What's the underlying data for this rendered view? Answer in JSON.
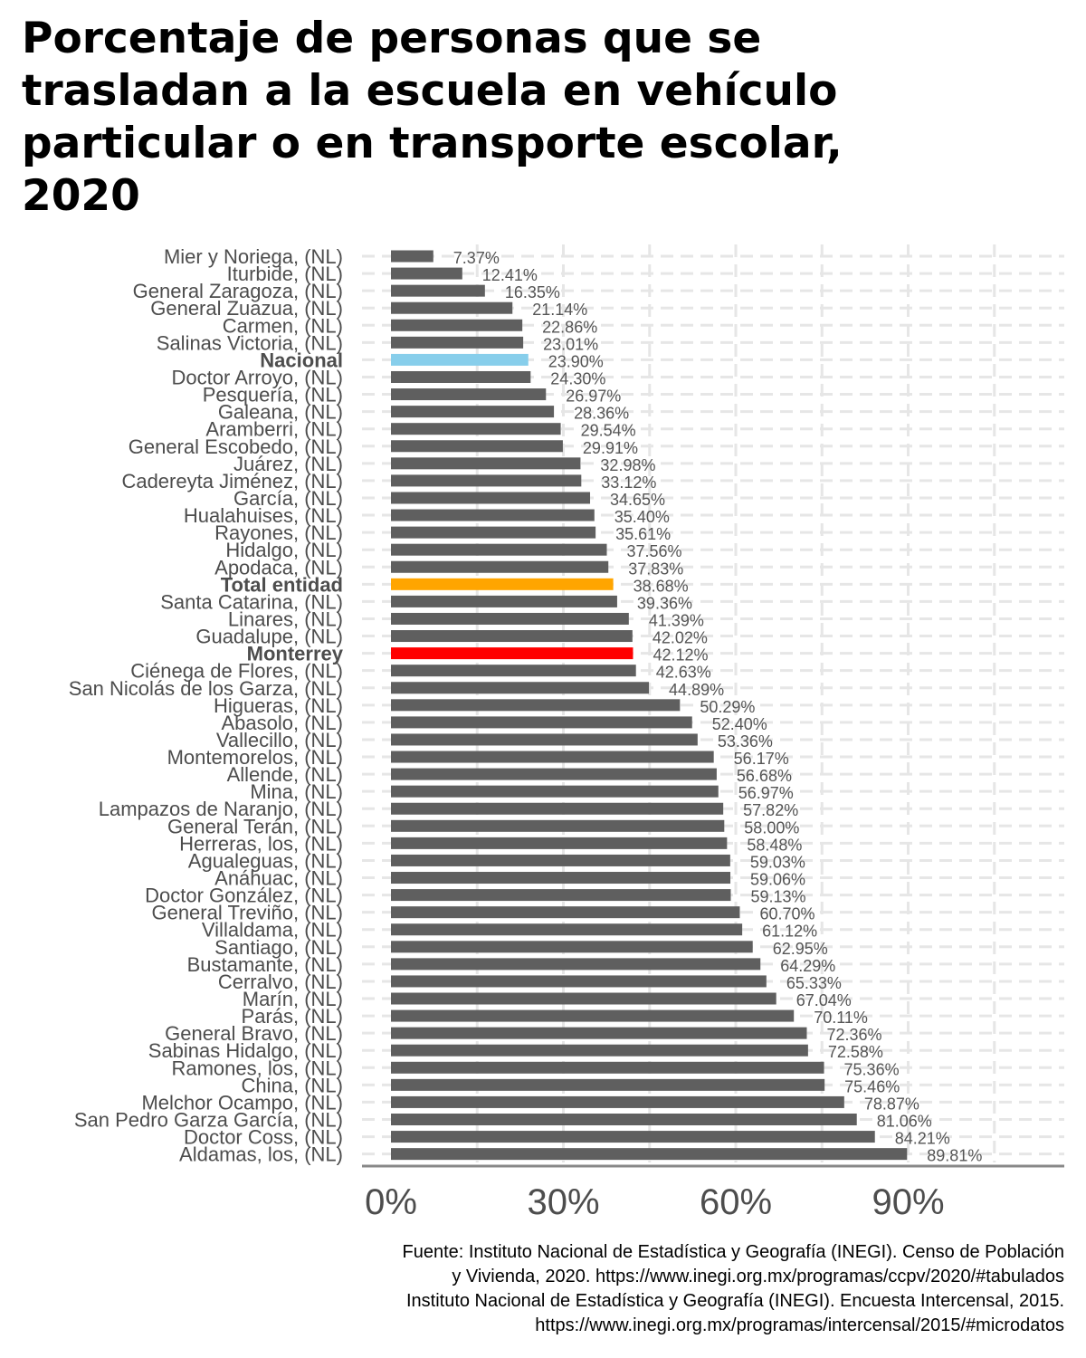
{
  "title": "Porcentaje de personas que se\ntrasladan a la escuela en vehículo\nparticular o en transporte escolar,\n2020",
  "source_lines": [
    "Fuente: Instituto Nacional de Estadística y Geografía (INEGI). Censo de Población",
    "y Vivienda, 2020. https://www.inegi.org.mx/programas/ccpv/2020/#tabulados",
    "Instituto Nacional de Estadística y Geografía (INEGI). Encuesta Intercensal, 2015.",
    "https://www.inegi.org.mx/programas/intercensal/2015/#microdatos"
  ],
  "colors": {
    "default_bar": "#5f5f5f",
    "Nacional": "#87ceeb",
    "Total entidad": "#ffa500",
    "Monterrey": "#ff0000"
  },
  "chart_data": {
    "type": "bar",
    "orientation": "horizontal",
    "xlim": [
      0,
      1.14
    ],
    "x_ticks": [
      0,
      0.3,
      0.6,
      0.9
    ],
    "x_tick_labels": [
      "0%",
      "30%",
      "60%",
      "90%"
    ],
    "grid": true,
    "categories": [
      "Mier y Noriega, (NL)",
      "Iturbide, (NL)",
      "General Zaragoza, (NL)",
      "General Zuazua, (NL)",
      "Carmen, (NL)",
      "Salinas Victoria, (NL)",
      "Nacional",
      "Doctor Arroyo, (NL)",
      "Pesquería, (NL)",
      "Galeana, (NL)",
      "Aramberri, (NL)",
      "General Escobedo, (NL)",
      "Juárez, (NL)",
      "Cadereyta Jiménez, (NL)",
      "García, (NL)",
      "Hualahuises, (NL)",
      "Rayones, (NL)",
      "Hidalgo, (NL)",
      "Apodaca, (NL)",
      "Total entidad",
      "Santa Catarina, (NL)",
      "Linares, (NL)",
      "Guadalupe, (NL)",
      "Monterrey",
      "Ciénega de Flores, (NL)",
      "San Nicolás de los Garza, (NL)",
      "Higueras, (NL)",
      "Abasolo, (NL)",
      "Vallecillo, (NL)",
      "Montemorelos, (NL)",
      "Allende, (NL)",
      "Mina, (NL)",
      "Lampazos de Naranjo, (NL)",
      "General Terán, (NL)",
      "Herreras, los, (NL)",
      "Agualeguas, (NL)",
      "Anáhuac, (NL)",
      "Doctor González, (NL)",
      "General Treviño, (NL)",
      "Villaldama, (NL)",
      "Santiago, (NL)",
      "Bustamante, (NL)",
      "Cerralvo, (NL)",
      "Marín, (NL)",
      "Parás, (NL)",
      "General Bravo, (NL)",
      "Sabinas Hidalgo, (NL)",
      "Ramones, los, (NL)",
      "China, (NL)",
      "Melchor Ocampo, (NL)",
      "San Pedro Garza García, (NL)",
      "Doctor Coss, (NL)",
      "Aldamas, los, (NL)"
    ],
    "values": [
      0.0737,
      0.1241,
      0.1635,
      0.2114,
      0.2286,
      0.2301,
      0.239,
      0.243,
      0.2697,
      0.2836,
      0.2954,
      0.2991,
      0.3298,
      0.3312,
      0.3465,
      0.354,
      0.3561,
      0.3756,
      0.3783,
      0.3868,
      0.3936,
      0.4139,
      0.4202,
      0.4212,
      0.4263,
      0.4489,
      0.5029,
      0.524,
      0.5336,
      0.5617,
      0.5668,
      0.5697,
      0.5782,
      0.58,
      0.5848,
      0.5903,
      0.5906,
      0.5913,
      0.607,
      0.6112,
      0.6295,
      0.6429,
      0.6533,
      0.6704,
      0.7011,
      0.7236,
      0.7258,
      0.7536,
      0.7546,
      0.7887,
      0.8106,
      0.8421,
      0.8981
    ],
    "value_labels": [
      "7.37%",
      "12.41%",
      "16.35%",
      "21.14%",
      "22.86%",
      "23.01%",
      "23.90%",
      "24.30%",
      "26.97%",
      "28.36%",
      "29.54%",
      "29.91%",
      "32.98%",
      "33.12%",
      "34.65%",
      "35.40%",
      "35.61%",
      "37.56%",
      "37.83%",
      "38.68%",
      "39.36%",
      "41.39%",
      "42.02%",
      "42.12%",
      "42.63%",
      "44.89%",
      "50.29%",
      "52.40%",
      "53.36%",
      "56.17%",
      "56.68%",
      "56.97%",
      "57.82%",
      "58.00%",
      "58.48%",
      "59.03%",
      "59.06%",
      "59.13%",
      "60.70%",
      "61.12%",
      "62.95%",
      "64.29%",
      "65.33%",
      "67.04%",
      "70.11%",
      "72.36%",
      "72.58%",
      "75.36%",
      "75.46%",
      "78.87%",
      "81.06%",
      "84.21%",
      "89.81%"
    ]
  }
}
